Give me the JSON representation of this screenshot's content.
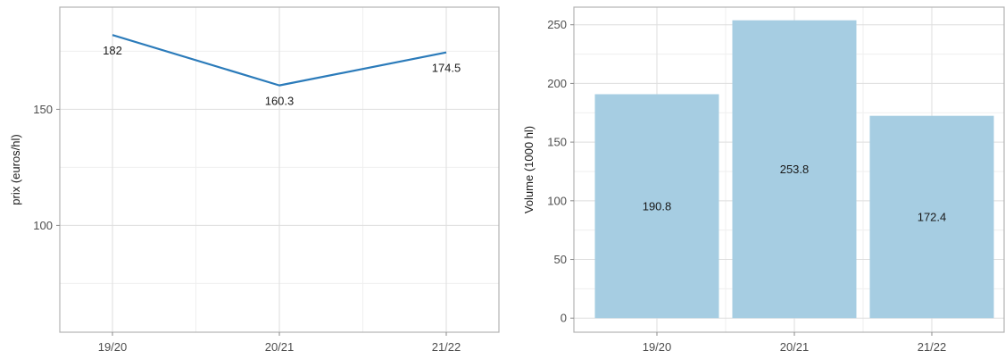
{
  "chart_data": [
    {
      "type": "line",
      "title": "",
      "xlabel": "",
      "ylabel": "prix (euros/hl)",
      "categories": [
        "19/20",
        "20/21",
        "21/22"
      ],
      "series": [
        {
          "values": [
            182,
            160.3,
            174.5
          ],
          "labels": [
            "182",
            "160.3",
            "174.5"
          ]
        }
      ],
      "ylim": [
        54,
        194
      ],
      "yticks": [
        100,
        150
      ],
      "grid": true,
      "line_color": "#2b7bba"
    },
    {
      "type": "bar",
      "title": "",
      "xlabel": "",
      "ylabel": "Volume (1000 hl)",
      "categories": [
        "19/20",
        "20/21",
        "21/22"
      ],
      "values": [
        190.8,
        253.8,
        172.4
      ],
      "labels": [
        "190.8",
        "253.8",
        "172.4"
      ],
      "ylim": [
        -12,
        265
      ],
      "yticks": [
        0,
        50,
        100,
        150,
        200,
        250
      ],
      "grid": true,
      "bar_color": "#a6cde2"
    }
  ]
}
